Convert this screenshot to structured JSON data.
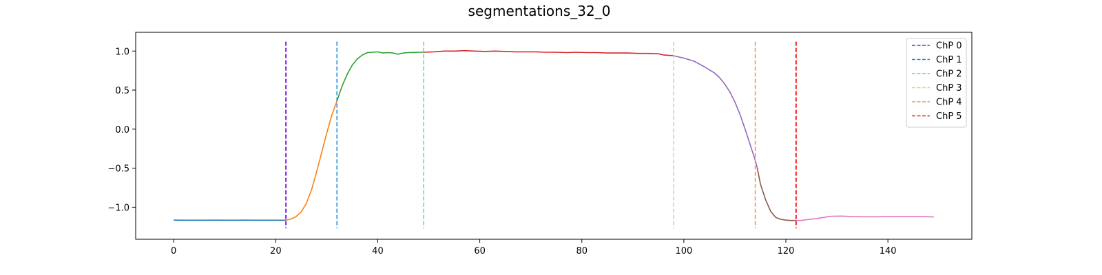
{
  "chart_data": {
    "type": "line",
    "title": "segmentations_32_0",
    "xlabel": "",
    "ylabel": "",
    "xlim": [
      -7.45,
      156.45
    ],
    "ylim": [
      -1.41,
      1.24
    ],
    "xticks": [
      0,
      20,
      40,
      60,
      80,
      100,
      120,
      140
    ],
    "yticks": [
      -1.0,
      -0.5,
      0.0,
      0.5,
      1.0
    ],
    "xtick_labels": [
      "0",
      "20",
      "40",
      "60",
      "80",
      "100",
      "120",
      "140"
    ],
    "ytick_labels": [
      "−1.0",
      "−0.5",
      "0.0",
      "0.5",
      "1.0"
    ],
    "grid": false,
    "legend_position": "top-right",
    "segments": [
      {
        "color": "#1f77b4",
        "points": [
          [
            0,
            -1.165
          ],
          [
            2,
            -1.166
          ],
          [
            4,
            -1.166
          ],
          [
            6,
            -1.166
          ],
          [
            8,
            -1.165
          ],
          [
            10,
            -1.166
          ],
          [
            12,
            -1.166
          ],
          [
            14,
            -1.165
          ],
          [
            16,
            -1.166
          ],
          [
            18,
            -1.166
          ],
          [
            20,
            -1.166
          ],
          [
            22,
            -1.166
          ]
        ]
      },
      {
        "color": "#ff7f0e",
        "points": [
          [
            22,
            -1.166
          ],
          [
            23,
            -1.15
          ],
          [
            24,
            -1.12
          ],
          [
            25,
            -1.06
          ],
          [
            26,
            -0.95
          ],
          [
            27,
            -0.78
          ],
          [
            28,
            -0.55
          ],
          [
            29,
            -0.3
          ],
          [
            30,
            -0.05
          ],
          [
            31,
            0.18
          ],
          [
            32,
            0.36
          ]
        ]
      },
      {
        "color": "#2ca02c",
        "points": [
          [
            32,
            0.36
          ],
          [
            33,
            0.55
          ],
          [
            34,
            0.7
          ],
          [
            35,
            0.82
          ],
          [
            36,
            0.9
          ],
          [
            37,
            0.95
          ],
          [
            38,
            0.98
          ],
          [
            39,
            0.985
          ],
          [
            40,
            0.99
          ],
          [
            41,
            0.975
          ],
          [
            42,
            0.98
          ],
          [
            43,
            0.975
          ],
          [
            44,
            0.96
          ],
          [
            45,
            0.975
          ],
          [
            46,
            0.98
          ],
          [
            47,
            0.982
          ],
          [
            48,
            0.985
          ],
          [
            49,
            0.985
          ]
        ]
      },
      {
        "color": "#d62728",
        "points": [
          [
            49,
            0.985
          ],
          [
            51,
            0.99
          ],
          [
            53,
            1.0
          ],
          [
            55,
            1.0
          ],
          [
            57,
            1.005
          ],
          [
            59,
            1.0
          ],
          [
            61,
            0.995
          ],
          [
            63,
            1.0
          ],
          [
            65,
            0.995
          ],
          [
            67,
            0.99
          ],
          [
            69,
            0.99
          ],
          [
            71,
            0.99
          ],
          [
            73,
            0.985
          ],
          [
            75,
            0.985
          ],
          [
            77,
            0.98
          ],
          [
            79,
            0.985
          ],
          [
            81,
            0.98
          ],
          [
            83,
            0.98
          ],
          [
            85,
            0.975
          ],
          [
            87,
            0.975
          ],
          [
            89,
            0.975
          ],
          [
            91,
            0.97
          ],
          [
            93,
            0.97
          ],
          [
            95,
            0.965
          ],
          [
            96,
            0.95
          ],
          [
            98,
            0.94
          ]
        ]
      },
      {
        "color": "#9467bd",
        "points": [
          [
            98,
            0.94
          ],
          [
            100,
            0.91
          ],
          [
            102,
            0.87
          ],
          [
            104,
            0.8
          ],
          [
            106,
            0.72
          ],
          [
            107,
            0.66
          ],
          [
            108,
            0.58
          ],
          [
            109,
            0.48
          ],
          [
            110,
            0.35
          ],
          [
            111,
            0.19
          ],
          [
            112,
            0.0
          ],
          [
            113,
            -0.2
          ],
          [
            114,
            -0.4
          ],
          [
            114.4,
            -0.5
          ]
        ]
      },
      {
        "color": "#8c564b",
        "points": [
          [
            114.4,
            -0.5
          ],
          [
            115,
            -0.7
          ],
          [
            116,
            -0.9
          ],
          [
            117,
            -1.05
          ],
          [
            118,
            -1.13
          ],
          [
            119,
            -1.155
          ],
          [
            120,
            -1.165
          ],
          [
            121,
            -1.17
          ],
          [
            122,
            -1.17
          ]
        ]
      },
      {
        "color": "#e377c2",
        "points": [
          [
            122,
            -1.17
          ],
          [
            123,
            -1.17
          ],
          [
            124,
            -1.16
          ],
          [
            126,
            -1.145
          ],
          [
            128,
            -1.125
          ],
          [
            129,
            -1.115
          ],
          [
            131,
            -1.113
          ],
          [
            133,
            -1.12
          ],
          [
            135,
            -1.122
          ],
          [
            138,
            -1.122
          ],
          [
            141,
            -1.12
          ],
          [
            144,
            -1.12
          ],
          [
            147,
            -1.12
          ],
          [
            149,
            -1.125
          ]
        ]
      }
    ],
    "changepoints": [
      {
        "label": "ChP 0",
        "x": 22,
        "color": "#7f1fe0",
        "width": 2
      },
      {
        "label": "ChP 1",
        "x": 32,
        "color": "#1f88d8",
        "width": 1.5
      },
      {
        "label": "ChP 2",
        "x": 49,
        "color": "#3fe3c8",
        "width": 1.5
      },
      {
        "label": "ChP 3",
        "x": 98,
        "color": "#aae88f",
        "width": 1.5
      },
      {
        "label": "ChP 4",
        "x": 114,
        "color": "#ff8a3c",
        "width": 1.5
      },
      {
        "label": "ChP 5",
        "x": 122,
        "color": "#f52020",
        "width": 2
      }
    ],
    "changepoint_range": [
      -1.27,
      1.12
    ]
  }
}
